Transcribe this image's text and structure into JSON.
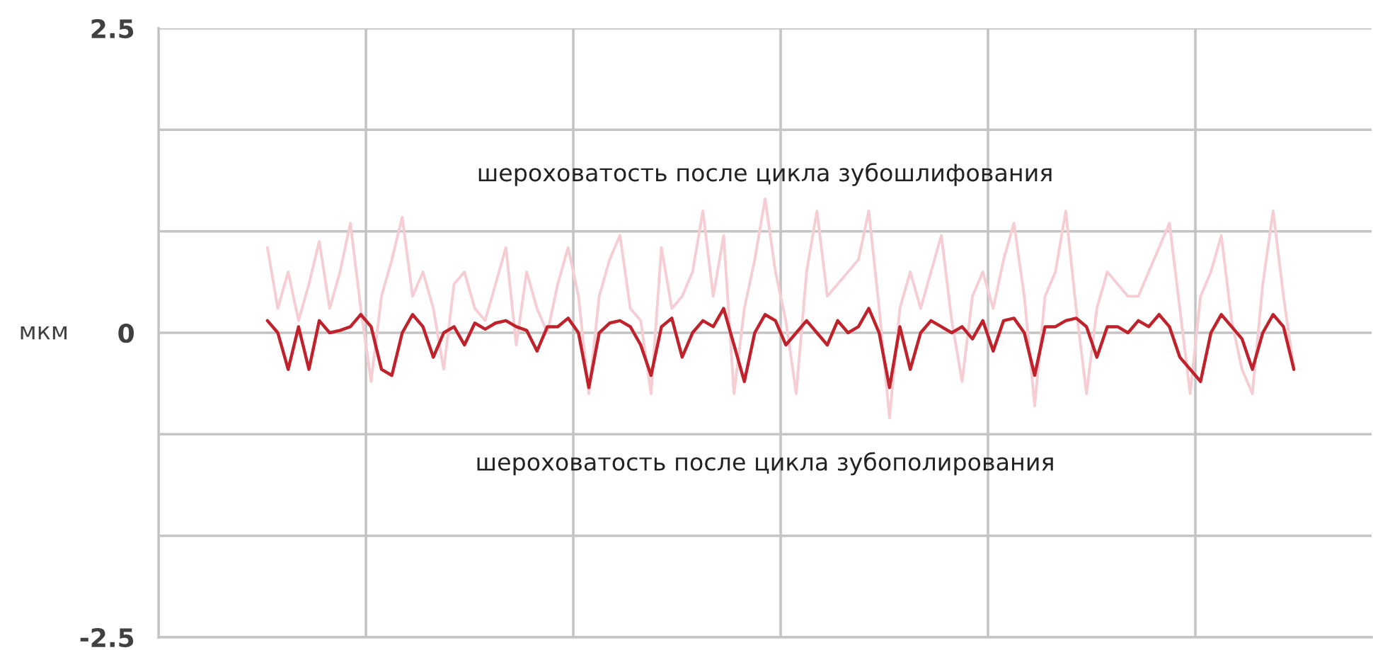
{
  "chart_data": {
    "type": "line",
    "ylabel": "мкм",
    "annotations": [
      "шероховатость после цикла зубошлифования",
      "шероховатость после цикла зубополирования"
    ],
    "categories": [
      null,
      null,
      null,
      null,
      null,
      null,
      null,
      null,
      null,
      null,
      null,
      null,
      null,
      null,
      null,
      null,
      null,
      null,
      null,
      null,
      null,
      null,
      null,
      null,
      null,
      null,
      null,
      null,
      null,
      null,
      null,
      null,
      null,
      null,
      null,
      null,
      null,
      null,
      null,
      null,
      null,
      null,
      null,
      null,
      null,
      null,
      null,
      null,
      null,
      null,
      null,
      null,
      null,
      null,
      null,
      null,
      null,
      null,
      null,
      null,
      null,
      null,
      null,
      null,
      null,
      null,
      null,
      null,
      null,
      null,
      null,
      null,
      null,
      null,
      null,
      null,
      null,
      null,
      null,
      null,
      null,
      null,
      null,
      null,
      null,
      null,
      null,
      null,
      null,
      null,
      null,
      null,
      null,
      null,
      null,
      null,
      null,
      null,
      null,
      null,
      null,
      null,
      null,
      null,
      null,
      null,
      null,
      null,
      null,
      null,
      null,
      null,
      null,
      null,
      null,
      null,
      null
    ],
    "ylim": [
      -2.5,
      2.5
    ],
    "yticks": [
      {
        "value": -2.5,
        "label": "-2.5"
      },
      {
        "value": -1.667,
        "label": null
      },
      {
        "value": -0.833,
        "label": null
      },
      {
        "value": 0,
        "label": "0"
      },
      {
        "value": 0.833,
        "label": null
      },
      {
        "value": 1.667,
        "label": null
      },
      {
        "value": 2.5,
        "label": "2.5"
      }
    ],
    "tick_labels": "y",
    "grid": true,
    "series": [
      {
        "color": "#f6cdd3",
        "values": [
          null,
          null,
          null,
          null,
          null,
          null,
          null,
          null,
          null,
          null,
          0.7,
          0.2,
          0.5,
          0.1,
          0.4,
          0.75,
          0.2,
          0.5,
          0.9,
          0.2,
          -0.4,
          0.3,
          0.6,
          0.95,
          0.3,
          0.5,
          0.2,
          -0.3,
          0.4,
          0.5,
          0.2,
          0.1,
          0.4,
          0.7,
          -0.1,
          0.5,
          0.2,
          0.0,
          0.4,
          0.7,
          0.3,
          -0.5,
          0.3,
          0.6,
          0.8,
          0.2,
          0.1,
          -0.5,
          0.7,
          0.2,
          0.3,
          0.5,
          1.0,
          0.3,
          0.8,
          -0.5,
          0.2,
          0.6,
          1.1,
          0.5,
          0.1,
          -0.5,
          0.5,
          1.0,
          0.3,
          0.4,
          0.5,
          0.6,
          1.0,
          0.2,
          -0.7,
          0.2,
          0.5,
          0.2,
          0.5,
          0.8,
          0.1,
          -0.4,
          0.3,
          0.5,
          0.2,
          0.6,
          0.9,
          0.3,
          -0.6,
          0.3,
          0.5,
          1.0,
          0.2,
          -0.5,
          0.2,
          0.5,
          0.4,
          0.3,
          0.3,
          0.5,
          0.7,
          0.9,
          0.2,
          -0.5,
          0.3,
          0.5,
          0.8,
          0.1,
          -0.3,
          -0.5,
          0.4,
          1.0,
          0.3,
          -0.3,
          null,
          null,
          null,
          null,
          null,
          null,
          null
        ]
      },
      {
        "color": "#c0222c",
        "values": [
          null,
          null,
          null,
          null,
          null,
          null,
          null,
          null,
          null,
          null,
          0.1,
          0.0,
          -0.3,
          0.05,
          -0.3,
          0.1,
          0.0,
          0.02,
          0.05,
          0.15,
          0.05,
          -0.3,
          -0.35,
          0.0,
          0.15,
          0.05,
          -0.2,
          0.0,
          0.05,
          -0.1,
          0.08,
          0.03,
          0.08,
          0.1,
          0.05,
          0.02,
          -0.15,
          0.05,
          0.05,
          0.12,
          0.0,
          -0.45,
          0.0,
          0.08,
          0.1,
          0.05,
          -0.1,
          -0.35,
          0.05,
          0.12,
          -0.2,
          0.0,
          0.1,
          0.05,
          0.2,
          -0.1,
          -0.4,
          0.0,
          0.15,
          0.1,
          -0.1,
          0.0,
          0.1,
          0.0,
          -0.1,
          0.1,
          0.0,
          0.05,
          0.2,
          0.0,
          -0.45,
          0.05,
          -0.3,
          0.0,
          0.1,
          0.05,
          0.0,
          0.05,
          -0.05,
          0.1,
          -0.15,
          0.1,
          0.12,
          0.0,
          -0.35,
          0.05,
          0.05,
          0.1,
          0.12,
          0.05,
          -0.2,
          0.05,
          0.05,
          0.0,
          0.1,
          0.05,
          0.15,
          0.05,
          -0.2,
          -0.3,
          -0.4,
          0.0,
          0.15,
          0.05,
          -0.05,
          -0.3,
          0.0,
          0.15,
          0.05,
          -0.3,
          null,
          null,
          null,
          null,
          null,
          null,
          null
        ]
      }
    ]
  }
}
